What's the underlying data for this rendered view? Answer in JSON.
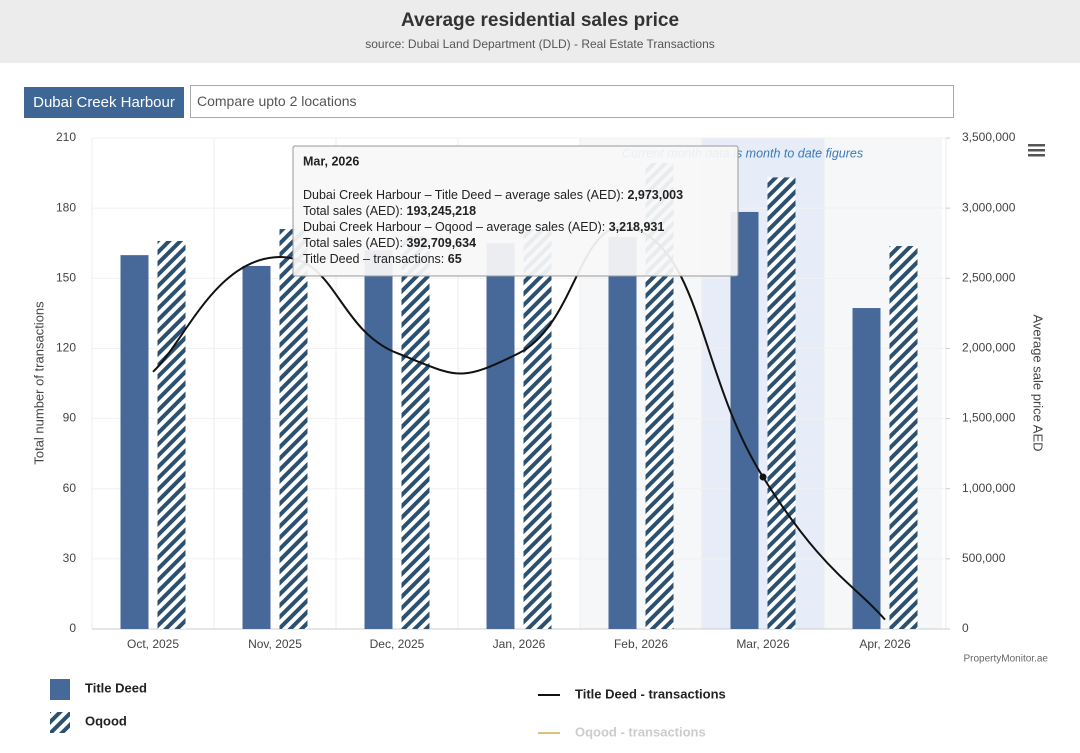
{
  "header": {
    "title": "Average residential sales price",
    "subtitle": "source: Dubai Land Department (DLD) - Real Estate Transactions"
  },
  "controls": {
    "location": "Dubai Creek Harbour",
    "compare_placeholder": "Compare upto 2 locations"
  },
  "chart_data": {
    "type": "bar",
    "categories": [
      "Oct, 2025",
      "Nov, 2025",
      "Dec, 2025",
      "Jan, 2026",
      "Feb, 2026",
      "Mar, 2026",
      "Apr, 2026"
    ],
    "series": [
      {
        "name": "Title Deed",
        "type": "bar",
        "axis": "y2",
        "color": "#47699a",
        "values": [
          2665000,
          2588000,
          2700000,
          2750000,
          2794000,
          2973003,
          2288000
        ]
      },
      {
        "name": "Oqood",
        "type": "bar",
        "axis": "y2",
        "color": "#2c5170",
        "pattern": "hatch",
        "values": [
          2766000,
          2851000,
          2800000,
          2850000,
          3322000,
          3218931,
          2730000
        ]
      },
      {
        "name": "Title Deed - transactions",
        "type": "line",
        "color": "#111111",
        "values": [
          110,
          159,
          118,
          118,
          170,
          65,
          4
        ]
      },
      {
        "name": "Oqood - transactions",
        "type": "line",
        "color": "#d9c27a",
        "hidden": true,
        "values": [
          null,
          null,
          null,
          null,
          null,
          null,
          null
        ]
      }
    ],
    "ylabel": "Total number of transactions",
    "ylim": [
      0,
      210
    ],
    "yticks": [
      0,
      30,
      60,
      90,
      120,
      150,
      180,
      210
    ],
    "y2label": "Average sale price AED",
    "y2lim": [
      0,
      3500000
    ],
    "y2ticks": [
      0,
      {
        "value": 500000,
        "label": "500,000"
      },
      {
        "value": 1000000,
        "label": "1,000,000"
      },
      {
        "value": 1500000,
        "label": "1,500,000"
      },
      {
        "value": 2000000,
        "label": "2,000,000"
      },
      {
        "value": 2500000,
        "label": "2,500,000"
      },
      {
        "value": 3000000,
        "label": "3,000,000"
      },
      {
        "value": 3500000,
        "label": "3,500,000"
      }
    ],
    "grid": true,
    "annotation": "Current month data is month to date figures",
    "credit": "PropertyMonitor.ae",
    "tooltip": {
      "title": "Mar, 2026",
      "lines": [
        {
          "label": "Dubai Creek Harbour – Title Deed – average sales (AED): ",
          "value": "2,973,003"
        },
        {
          "label": "Total sales (AED): ",
          "value": "193,245,218"
        },
        {
          "label": "Dubai Creek Harbour – Oqood – average sales (AED): ",
          "value": "3,218,931"
        },
        {
          "label": "Total sales (AED): ",
          "value": "392,709,634"
        },
        {
          "label": "Title Deed – transactions: ",
          "value": "65"
        }
      ]
    }
  }
}
